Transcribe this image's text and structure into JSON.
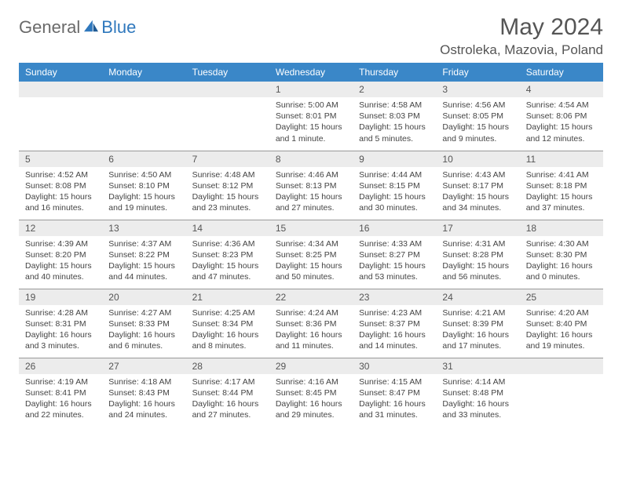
{
  "brand": {
    "text1": "General",
    "text2": "Blue"
  },
  "title": "May 2024",
  "location": "Ostroleka, Mazovia, Poland",
  "theme": {
    "header_bg": "#3a87c8",
    "header_fg": "#ffffff",
    "daynum_bg": "#ececec",
    "text_color": "#444444",
    "brand_gray": "#6a6a6a",
    "brand_blue": "#2f78bd"
  },
  "weekdays": [
    "Sunday",
    "Monday",
    "Tuesday",
    "Wednesday",
    "Thursday",
    "Friday",
    "Saturday"
  ],
  "weeks": [
    [
      null,
      null,
      null,
      {
        "n": "1",
        "sr": "5:00 AM",
        "ss": "8:01 PM",
        "dl": "15 hours and 1 minute."
      },
      {
        "n": "2",
        "sr": "4:58 AM",
        "ss": "8:03 PM",
        "dl": "15 hours and 5 minutes."
      },
      {
        "n": "3",
        "sr": "4:56 AM",
        "ss": "8:05 PM",
        "dl": "15 hours and 9 minutes."
      },
      {
        "n": "4",
        "sr": "4:54 AM",
        "ss": "8:06 PM",
        "dl": "15 hours and 12 minutes."
      }
    ],
    [
      {
        "n": "5",
        "sr": "4:52 AM",
        "ss": "8:08 PM",
        "dl": "15 hours and 16 minutes."
      },
      {
        "n": "6",
        "sr": "4:50 AM",
        "ss": "8:10 PM",
        "dl": "15 hours and 19 minutes."
      },
      {
        "n": "7",
        "sr": "4:48 AM",
        "ss": "8:12 PM",
        "dl": "15 hours and 23 minutes."
      },
      {
        "n": "8",
        "sr": "4:46 AM",
        "ss": "8:13 PM",
        "dl": "15 hours and 27 minutes."
      },
      {
        "n": "9",
        "sr": "4:44 AM",
        "ss": "8:15 PM",
        "dl": "15 hours and 30 minutes."
      },
      {
        "n": "10",
        "sr": "4:43 AM",
        "ss": "8:17 PM",
        "dl": "15 hours and 34 minutes."
      },
      {
        "n": "11",
        "sr": "4:41 AM",
        "ss": "8:18 PM",
        "dl": "15 hours and 37 minutes."
      }
    ],
    [
      {
        "n": "12",
        "sr": "4:39 AM",
        "ss": "8:20 PM",
        "dl": "15 hours and 40 minutes."
      },
      {
        "n": "13",
        "sr": "4:37 AM",
        "ss": "8:22 PM",
        "dl": "15 hours and 44 minutes."
      },
      {
        "n": "14",
        "sr": "4:36 AM",
        "ss": "8:23 PM",
        "dl": "15 hours and 47 minutes."
      },
      {
        "n": "15",
        "sr": "4:34 AM",
        "ss": "8:25 PM",
        "dl": "15 hours and 50 minutes."
      },
      {
        "n": "16",
        "sr": "4:33 AM",
        "ss": "8:27 PM",
        "dl": "15 hours and 53 minutes."
      },
      {
        "n": "17",
        "sr": "4:31 AM",
        "ss": "8:28 PM",
        "dl": "15 hours and 56 minutes."
      },
      {
        "n": "18",
        "sr": "4:30 AM",
        "ss": "8:30 PM",
        "dl": "16 hours and 0 minutes."
      }
    ],
    [
      {
        "n": "19",
        "sr": "4:28 AM",
        "ss": "8:31 PM",
        "dl": "16 hours and 3 minutes."
      },
      {
        "n": "20",
        "sr": "4:27 AM",
        "ss": "8:33 PM",
        "dl": "16 hours and 6 minutes."
      },
      {
        "n": "21",
        "sr": "4:25 AM",
        "ss": "8:34 PM",
        "dl": "16 hours and 8 minutes."
      },
      {
        "n": "22",
        "sr": "4:24 AM",
        "ss": "8:36 PM",
        "dl": "16 hours and 11 minutes."
      },
      {
        "n": "23",
        "sr": "4:23 AM",
        "ss": "8:37 PM",
        "dl": "16 hours and 14 minutes."
      },
      {
        "n": "24",
        "sr": "4:21 AM",
        "ss": "8:39 PM",
        "dl": "16 hours and 17 minutes."
      },
      {
        "n": "25",
        "sr": "4:20 AM",
        "ss": "8:40 PM",
        "dl": "16 hours and 19 minutes."
      }
    ],
    [
      {
        "n": "26",
        "sr": "4:19 AM",
        "ss": "8:41 PM",
        "dl": "16 hours and 22 minutes."
      },
      {
        "n": "27",
        "sr": "4:18 AM",
        "ss": "8:43 PM",
        "dl": "16 hours and 24 minutes."
      },
      {
        "n": "28",
        "sr": "4:17 AM",
        "ss": "8:44 PM",
        "dl": "16 hours and 27 minutes."
      },
      {
        "n": "29",
        "sr": "4:16 AM",
        "ss": "8:45 PM",
        "dl": "16 hours and 29 minutes."
      },
      {
        "n": "30",
        "sr": "4:15 AM",
        "ss": "8:47 PM",
        "dl": "16 hours and 31 minutes."
      },
      {
        "n": "31",
        "sr": "4:14 AM",
        "ss": "8:48 PM",
        "dl": "16 hours and 33 minutes."
      },
      null
    ]
  ],
  "labels": {
    "sunrise": "Sunrise:",
    "sunset": "Sunset:",
    "daylight": "Daylight:"
  }
}
